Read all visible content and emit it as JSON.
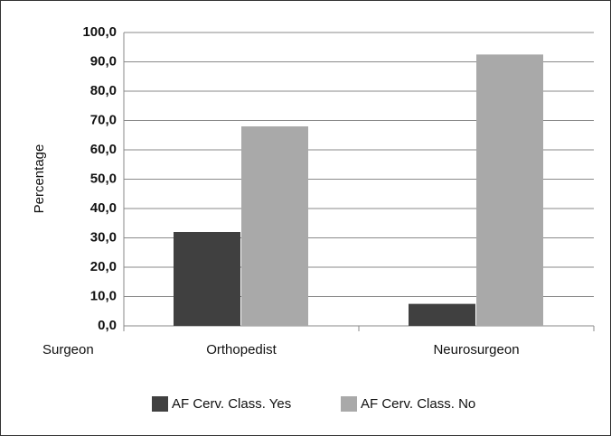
{
  "chart_data": {
    "type": "bar",
    "y_label": "Percentage",
    "x_label": "Surgeon",
    "categories": [
      "Orthopedist",
      "Neurosurgeon"
    ],
    "series": [
      {
        "name": "AF Cerv. Class. Yes",
        "color": "#404040",
        "values": [
          32,
          7.5
        ]
      },
      {
        "name": "AF Cerv. Class. No",
        "color": "#a9a9a9",
        "values": [
          68,
          92.5
        ]
      }
    ],
    "ylim": [
      0,
      100
    ],
    "yticks": [
      {
        "value": 0,
        "label": "0,0"
      },
      {
        "value": 10,
        "label": "10,0"
      },
      {
        "value": 20,
        "label": "20,0"
      },
      {
        "value": 30,
        "label": "30,0"
      },
      {
        "value": 40,
        "label": "40,0"
      },
      {
        "value": 50,
        "label": "50,0"
      },
      {
        "value": 60,
        "label": "60,0"
      },
      {
        "value": 70,
        "label": "70,0"
      },
      {
        "value": 80,
        "label": "80,0"
      },
      {
        "value": 90,
        "label": "90,0"
      },
      {
        "value": 100,
        "label": "100,0"
      }
    ],
    "grid": true
  }
}
